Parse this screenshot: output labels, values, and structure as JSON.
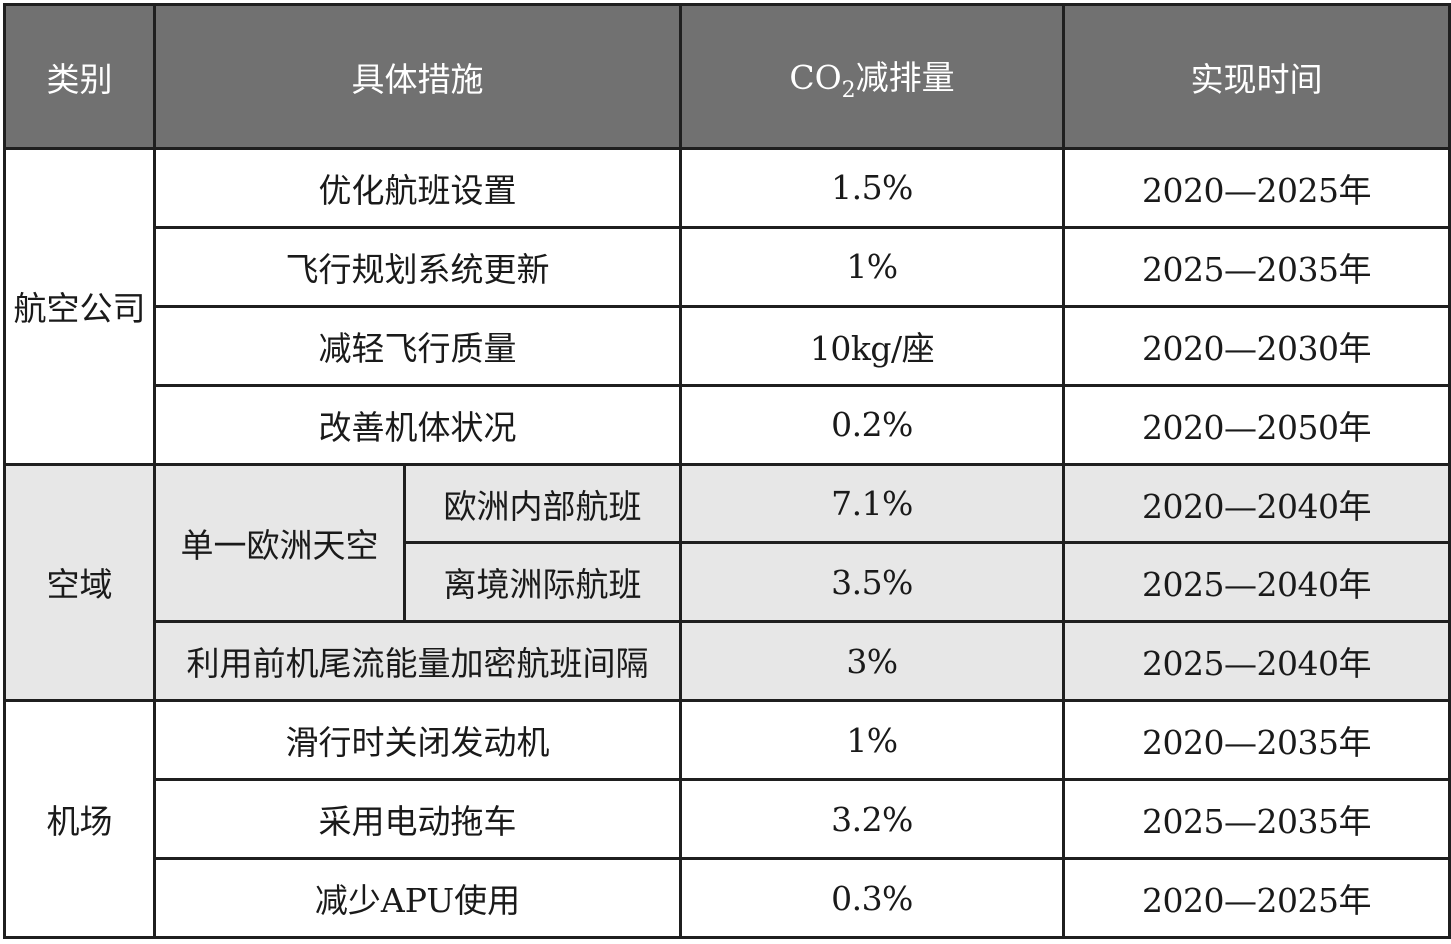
{
  "header": {
    "category": "类别",
    "measure": "具体措施",
    "co2_prefix": "CO",
    "co2_subscript": "2",
    "co2_suffix": "减排量",
    "time": "实现时间"
  },
  "groups": [
    {
      "category": "航空公司",
      "rows": [
        {
          "measure": "优化航班设置",
          "reduction": "1.5%",
          "time": "2020—2025年"
        },
        {
          "measure": "飞行规划系统更新",
          "reduction": "1%",
          "time": "2025—2035年"
        },
        {
          "measure": "减轻飞行质量",
          "reduction": "10kg/座",
          "time": "2020—2030年"
        },
        {
          "measure": "改善机体状况",
          "reduction": "0.2%",
          "time": "2020—2050年"
        }
      ]
    },
    {
      "category": "空域",
      "subgroup": "单一欧洲天空",
      "rows": [
        {
          "measure": "欧洲内部航班",
          "reduction": "7.1%",
          "time": "2020—2040年"
        },
        {
          "measure": "离境洲际航班",
          "reduction": "3.5%",
          "time": "2025—2040年"
        },
        {
          "measure": "利用前机尾流能量加密航班间隔",
          "reduction": "3%",
          "time": "2025—2040年"
        }
      ]
    },
    {
      "category": "机场",
      "rows": [
        {
          "measure": "滑行时关闭发动机",
          "reduction": "1%",
          "time": "2020—2035年"
        },
        {
          "measure": "采用电动拖车",
          "reduction": "3.2%",
          "time": "2025—2035年"
        },
        {
          "measure": "减少APU使用",
          "reduction": "0.3%",
          "time": "2020—2025年"
        }
      ]
    }
  ],
  "colors": {
    "header_bg": "#717171",
    "airspace_bg": "#e7e7e7",
    "border": "#1f1f1f"
  }
}
